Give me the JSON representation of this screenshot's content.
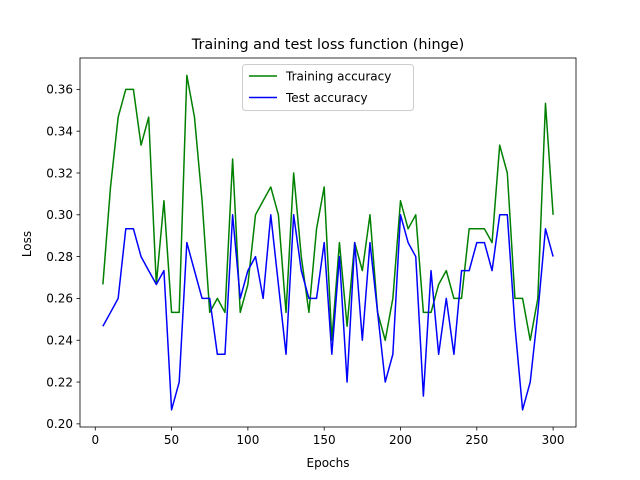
{
  "chart_data": {
    "type": "line",
    "title": "Training and test loss function (hinge)",
    "xlabel": "Epochs",
    "ylabel": "Loss",
    "xlim": [
      -10,
      315
    ],
    "ylim": [
      0.1985,
      0.375
    ],
    "xticks": [
      0,
      50,
      100,
      150,
      200,
      250,
      300
    ],
    "yticks": [
      0.2,
      0.22,
      0.24,
      0.26,
      0.28,
      0.3,
      0.32,
      0.34,
      0.36
    ],
    "ytick_labels": [
      "0.20",
      "0.22",
      "0.24",
      "0.26",
      "0.28",
      "0.30",
      "0.32",
      "0.34",
      "0.36"
    ],
    "legend_position": "top-center",
    "grid": false,
    "x": [
      5,
      10,
      15,
      20,
      25,
      30,
      35,
      40,
      45,
      50,
      55,
      60,
      65,
      70,
      75,
      80,
      85,
      90,
      95,
      100,
      105,
      110,
      115,
      120,
      125,
      130,
      135,
      140,
      145,
      150,
      155,
      160,
      165,
      170,
      175,
      180,
      185,
      190,
      195,
      200,
      205,
      210,
      215,
      220,
      225,
      230,
      235,
      240,
      245,
      250,
      255,
      260,
      265,
      270,
      275,
      280,
      285,
      290,
      295,
      300
    ],
    "series": [
      {
        "name": "Training accuracy",
        "color": "#008000",
        "values": [
          0.2667,
          0.3133,
          0.3467,
          0.36,
          0.36,
          0.3333,
          0.3467,
          0.2667,
          0.3067,
          0.2533,
          0.2533,
          0.3667,
          0.3467,
          0.3067,
          0.2533,
          0.26,
          0.2533,
          0.3267,
          0.2533,
          0.2667,
          0.3,
          0.3067,
          0.3133,
          0.3,
          0.2533,
          0.32,
          0.28,
          0.2533,
          0.2933,
          0.3133,
          0.24,
          0.2867,
          0.2467,
          0.2867,
          0.2733,
          0.3,
          0.2533,
          0.24,
          0.26,
          0.3067,
          0.2933,
          0.3,
          0.2533,
          0.2533,
          0.2667,
          0.2733,
          0.26,
          0.26,
          0.2933,
          0.2933,
          0.2933,
          0.2867,
          0.3333,
          0.32,
          0.26,
          0.26,
          0.24,
          0.26,
          0.3533,
          0.3
        ]
      },
      {
        "name": "Test accuracy",
        "color": "#0000ff",
        "values": [
          0.2467,
          0.2533,
          0.26,
          0.2933,
          0.2933,
          0.28,
          0.2733,
          0.2667,
          0.2733,
          0.2067,
          0.22,
          0.2867,
          0.2733,
          0.26,
          0.26,
          0.2333,
          0.2333,
          0.3,
          0.26,
          0.2733,
          0.28,
          0.26,
          0.3,
          0.2667,
          0.2333,
          0.3,
          0.2733,
          0.26,
          0.26,
          0.2867,
          0.2333,
          0.28,
          0.22,
          0.2867,
          0.24,
          0.2867,
          0.2533,
          0.22,
          0.2333,
          0.3,
          0.2867,
          0.28,
          0.2133,
          0.2733,
          0.2333,
          0.26,
          0.2333,
          0.2733,
          0.2733,
          0.2867,
          0.2867,
          0.2733,
          0.3,
          0.3,
          0.2467,
          0.2067,
          0.22,
          0.2533,
          0.2933,
          0.28
        ]
      }
    ]
  }
}
